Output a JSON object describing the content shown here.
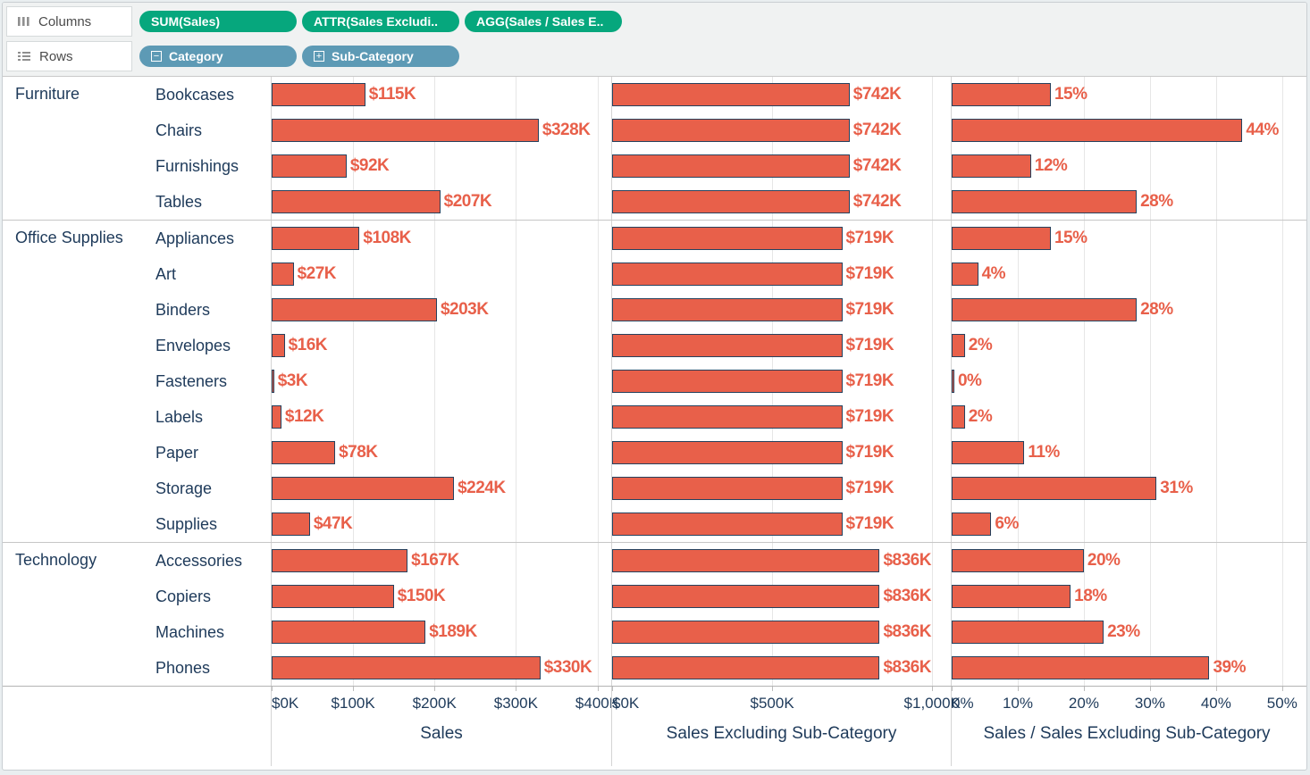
{
  "shelves": {
    "columns": {
      "label": "Columns",
      "pills": [
        {
          "label": "SUM(Sales)"
        },
        {
          "label": "ATTR(Sales Excludi.."
        },
        {
          "label": "AGG(Sales / Sales E.."
        }
      ]
    },
    "rows": {
      "label": "Rows",
      "pills": [
        {
          "label": "Category",
          "icon": "minus-box-icon",
          "icon_char": "−"
        },
        {
          "label": "Sub-Category",
          "icon": "plus-box-icon",
          "icon_char": "+"
        }
      ]
    }
  },
  "colors": {
    "bar": "#e8604a",
    "bar_border": "#26425e",
    "value_label": "#e8604a",
    "pill_green": "#06a77d",
    "pill_blue": "#5d9ab5",
    "label_text": "#1e3a5a"
  },
  "chart_data": {
    "type": "bar",
    "orientation": "horizontal",
    "grid": true,
    "panels": [
      {
        "title": "Sales",
        "value_key": "sales",
        "label_key": "sales_label",
        "axis_ticks": [
          "$0K",
          "$100K",
          "$200K",
          "$300K",
          "$400K"
        ],
        "tick_values": [
          0,
          100,
          200,
          300,
          400
        ],
        "axis_max": 417
      },
      {
        "title": "Sales Excluding Sub-Category",
        "value_key": "excl",
        "label_key": "excl_label",
        "axis_ticks": [
          "$0K",
          "$500K",
          "$1,000K"
        ],
        "tick_values": [
          0,
          500,
          1000
        ],
        "axis_max": 1058
      },
      {
        "title": "Sales / Sales Excluding Sub-Category",
        "value_key": "pct",
        "label_key": "pct_label",
        "axis_ticks": [
          "0%",
          "10%",
          "20%",
          "30%",
          "40%",
          "50%"
        ],
        "tick_values": [
          0,
          10,
          20,
          30,
          40,
          50
        ],
        "axis_max": 53
      }
    ],
    "groups": [
      {
        "category": "Furniture",
        "rows": [
          {
            "label": "Bookcases",
            "sales": 115,
            "sales_label": "$115K",
            "excl": 742,
            "excl_label": "$742K",
            "pct": 15,
            "pct_label": "15%"
          },
          {
            "label": "Chairs",
            "sales": 328,
            "sales_label": "$328K",
            "excl": 742,
            "excl_label": "$742K",
            "pct": 44,
            "pct_label": "44%"
          },
          {
            "label": "Furnishings",
            "sales": 92,
            "sales_label": "$92K",
            "excl": 742,
            "excl_label": "$742K",
            "pct": 12,
            "pct_label": "12%"
          },
          {
            "label": "Tables",
            "sales": 207,
            "sales_label": "$207K",
            "excl": 742,
            "excl_label": "$742K",
            "pct": 28,
            "pct_label": "28%"
          }
        ]
      },
      {
        "category": "Office Supplies",
        "rows": [
          {
            "label": "Appliances",
            "sales": 108,
            "sales_label": "$108K",
            "excl": 719,
            "excl_label": "$719K",
            "pct": 15,
            "pct_label": "15%"
          },
          {
            "label": "Art",
            "sales": 27,
            "sales_label": "$27K",
            "excl": 719,
            "excl_label": "$719K",
            "pct": 4,
            "pct_label": "4%"
          },
          {
            "label": "Binders",
            "sales": 203,
            "sales_label": "$203K",
            "excl": 719,
            "excl_label": "$719K",
            "pct": 28,
            "pct_label": "28%"
          },
          {
            "label": "Envelopes",
            "sales": 16,
            "sales_label": "$16K",
            "excl": 719,
            "excl_label": "$719K",
            "pct": 2,
            "pct_label": "2%"
          },
          {
            "label": "Fasteners",
            "sales": 3,
            "sales_label": "$3K",
            "excl": 719,
            "excl_label": "$719K",
            "pct": 0.4,
            "pct_label": "0%"
          },
          {
            "label": "Labels",
            "sales": 12,
            "sales_label": "$12K",
            "excl": 719,
            "excl_label": "$719K",
            "pct": 2,
            "pct_label": "2%"
          },
          {
            "label": "Paper",
            "sales": 78,
            "sales_label": "$78K",
            "excl": 719,
            "excl_label": "$719K",
            "pct": 11,
            "pct_label": "11%"
          },
          {
            "label": "Storage",
            "sales": 224,
            "sales_label": "$224K",
            "excl": 719,
            "excl_label": "$719K",
            "pct": 31,
            "pct_label": "31%"
          },
          {
            "label": "Supplies",
            "sales": 47,
            "sales_label": "$47K",
            "excl": 719,
            "excl_label": "$719K",
            "pct": 6,
            "pct_label": "6%"
          }
        ]
      },
      {
        "category": "Technology",
        "rows": [
          {
            "label": "Accessories",
            "sales": 167,
            "sales_label": "$167K",
            "excl": 836,
            "excl_label": "$836K",
            "pct": 20,
            "pct_label": "20%"
          },
          {
            "label": "Copiers",
            "sales": 150,
            "sales_label": "$150K",
            "excl": 836,
            "excl_label": "$836K",
            "pct": 18,
            "pct_label": "18%"
          },
          {
            "label": "Machines",
            "sales": 189,
            "sales_label": "$189K",
            "excl": 836,
            "excl_label": "$836K",
            "pct": 23,
            "pct_label": "23%"
          },
          {
            "label": "Phones",
            "sales": 330,
            "sales_label": "$330K",
            "excl": 836,
            "excl_label": "$836K",
            "pct": 39,
            "pct_label": "39%"
          }
        ]
      }
    ]
  }
}
